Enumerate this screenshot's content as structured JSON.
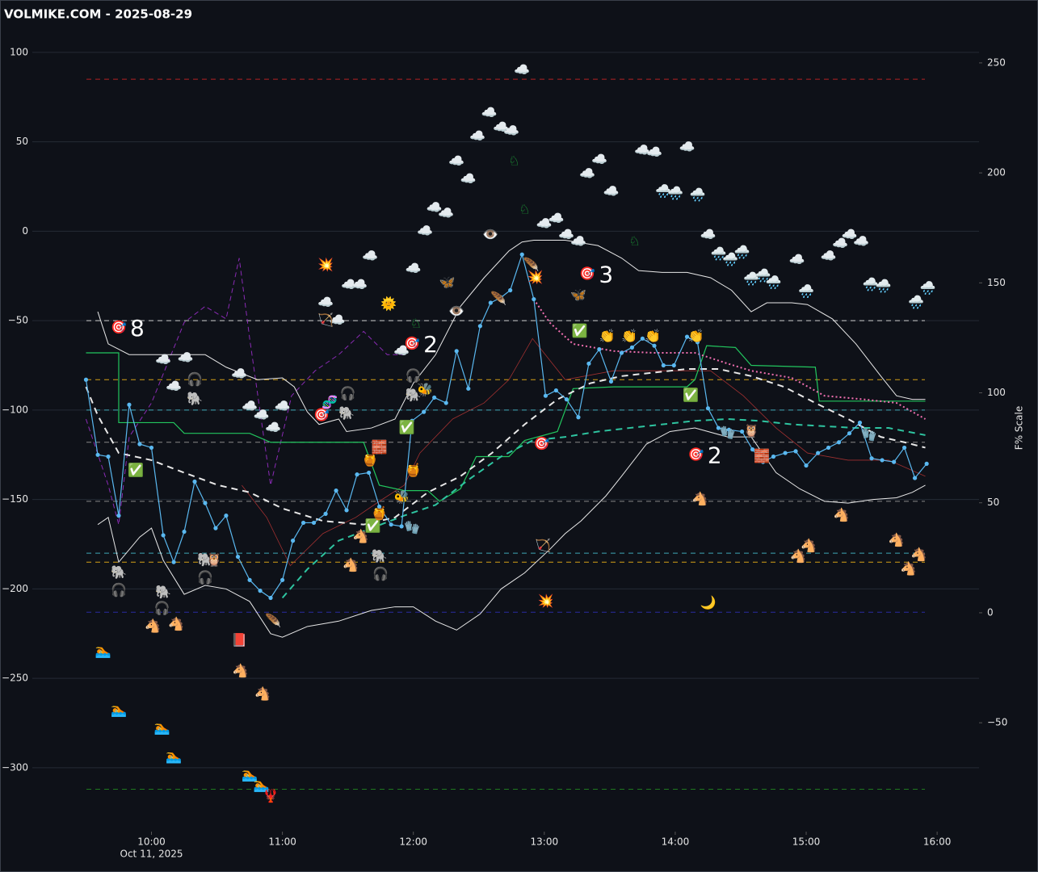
{
  "chart_data": {
    "type": "line",
    "title": "VOLMIKE.COM  - 2025-08-29",
    "y2label": "F% Scale",
    "date_label": "Oct 11, 2025",
    "xlim": [
      9.09,
      16.32
    ],
    "ylim": [
      -335.7,
      129.3
    ],
    "y2lim": [
      -99.5,
      278.6
    ],
    "grid": true,
    "xticks": [
      {
        "value": 10,
        "label": "10:00"
      },
      {
        "value": 11,
        "label": "11:00"
      },
      {
        "value": 12,
        "label": "12:00"
      },
      {
        "value": 13,
        "label": "13:00"
      },
      {
        "value": 14,
        "label": "14:00"
      },
      {
        "value": 15,
        "label": "15:00"
      },
      {
        "value": 16,
        "label": "16:00"
      }
    ],
    "yticks": [
      100,
      50,
      0,
      {
        "value": -50,
        "label": "−50"
      },
      {
        "value": -100,
        "label": "−100"
      },
      {
        "value": -150,
        "label": "−150"
      },
      {
        "value": -200,
        "label": "−200"
      },
      {
        "value": -250,
        "label": "−250"
      },
      {
        "value": -300,
        "label": "−300"
      }
    ],
    "y2ticks": [
      250,
      200,
      150,
      100,
      50,
      0,
      {
        "value": -50,
        "label": "−50"
      }
    ],
    "hlines": [
      {
        "value": 85,
        "color": "#b22222"
      },
      {
        "value": -50,
        "color": "#cccccc"
      },
      {
        "value": -83,
        "color": "#d4a017"
      },
      {
        "value": -100,
        "color": "#3fa7b5"
      },
      {
        "value": -118,
        "color": "#888888"
      },
      {
        "value": -151,
        "color": "#888888"
      },
      {
        "value": -180,
        "color": "#3fa7b5"
      },
      {
        "value": -185,
        "color": "#d4a017"
      },
      {
        "value": -213,
        "color": "#2a2aa0"
      },
      {
        "value": -312,
        "color": "#1f7a1f"
      }
    ],
    "series": [
      {
        "color": "#a03030",
        "width": 0.8,
        "dash": "none",
        "x": [
          10.69,
          10.88,
          11.06,
          11.31,
          11.56,
          11.74,
          11.93,
          12.05,
          12.3,
          12.54,
          12.73,
          12.91,
          13.16,
          13.53,
          14.27,
          14.52,
          14.77,
          15.01,
          15.32,
          15.63,
          15.91
        ],
        "values": [
          -142,
          -160,
          -187,
          -169,
          -160,
          -151,
          -142,
          -124,
          -105,
          -96,
          -83,
          -60,
          -83,
          -78,
          -78,
          -92,
          -110,
          -124,
          -128,
          -128,
          -137
        ]
      },
      {
        "color": "#8a2bb5",
        "width": 1,
        "dash": "6,4",
        "x": [
          9.5,
          9.67,
          9.75,
          9.83,
          10,
          10.25,
          10.41,
          10.57,
          10.67,
          10.75,
          10.91,
          11.07,
          11.25,
          11.43,
          11.62,
          11.8,
          11.93
        ],
        "values": [
          -105,
          -142,
          -164,
          -115,
          -96,
          -51,
          -42,
          -49,
          -15,
          -60,
          -142,
          -92,
          -78,
          -69,
          -56,
          -69,
          -69
        ]
      },
      {
        "color": "#e8e8e8",
        "width": 1,
        "dash": "none",
        "x": [
          9.59,
          9.67,
          9.83,
          10.07,
          10.26,
          10.41,
          10.57,
          10.81,
          11.0,
          11.09,
          11.19,
          11.28,
          11.43,
          11.49,
          11.68,
          11.86,
          12.0,
          12.17,
          12.36,
          12.54,
          12.73,
          12.83,
          12.92,
          13.16,
          13.41,
          13.59,
          13.72,
          13.9,
          14.09,
          14.27,
          14.43,
          14.58,
          14.7,
          14.89,
          15.01,
          15.2,
          15.38,
          15.57,
          15.69,
          15.81,
          15.91
        ],
        "values": [
          -45,
          -63,
          -69,
          -69,
          -69,
          -69,
          -76,
          -83,
          -82,
          -87,
          -101,
          -108,
          -105,
          -112,
          -110,
          -105,
          -85,
          -69,
          -42,
          -26,
          -11,
          -6,
          -5,
          -5,
          -8,
          -15,
          -22,
          -23,
          -23,
          -26,
          -33,
          -45,
          -40,
          -40,
          -41,
          -49,
          -63,
          -81,
          -92,
          -94,
          -94
        ]
      },
      {
        "color": "#e8e8e8",
        "width": 1,
        "dash": "none",
        "x": [
          9.59,
          9.67,
          9.75,
          9.91,
          10,
          10.09,
          10.25,
          10.41,
          10.57,
          10.75,
          10.91,
          11.0,
          11.19,
          11.43,
          11.68,
          11.86,
          12.0,
          12.17,
          12.33,
          12.51,
          12.67,
          12.85,
          13.04,
          13.16,
          13.28,
          13.47,
          13.59,
          13.78,
          13.96,
          14.15,
          14.4,
          14.58,
          14.77,
          14.95,
          15.14,
          15.32,
          15.51,
          15.69,
          15.81,
          15.91
        ],
        "values": [
          -164,
          -160,
          -185,
          -171,
          -166,
          -184,
          -203,
          -198,
          -200,
          -207,
          -225,
          -227,
          -221,
          -218,
          -212,
          -210,
          -210,
          -218,
          -223,
          -214,
          -200,
          -191,
          -178,
          -169,
          -162,
          -148,
          -137,
          -119,
          -112,
          -110,
          -115,
          -115,
          -135,
          -144,
          -151,
          -152,
          -150,
          -149,
          -146,
          -142
        ]
      },
      {
        "color": "#22c55e",
        "width": 1.2,
        "dash": "none",
        "x": [
          9.5,
          9.75,
          9.75,
          10.17,
          10.25,
          10.75,
          10.91,
          11.62,
          11.74,
          11.93,
          12.11,
          12.2,
          12.36,
          12.48,
          12.73,
          12.85,
          13.1,
          13.22,
          13.53,
          14.09,
          14.15,
          14.24,
          14.46,
          14.58,
          15.07,
          15.1,
          15.91
        ],
        "values": [
          -68,
          -68,
          -107,
          -107,
          -113,
          -113,
          -118,
          -118,
          -142,
          -145,
          -145,
          -151,
          -144,
          -126,
          -126,
          -117,
          -112,
          -88,
          -87,
          -87,
          -83,
          -64,
          -65,
          -75,
          -76,
          -95,
          -95
        ]
      },
      {
        "color": "#e8e8e8",
        "width": 2,
        "dash": "8,6",
        "x": [
          9.5,
          9.59,
          9.75,
          10,
          10.25,
          10.51,
          10.75,
          11,
          11.31,
          11.62,
          11.86,
          12.11,
          12.36,
          12.6,
          12.85,
          13.1,
          13.35,
          13.59,
          13.84,
          14.09,
          14.33,
          14.58,
          14.83,
          15.07,
          15.32,
          15.57,
          15.75,
          15.91
        ],
        "values": [
          -87,
          -103,
          -124,
          -128,
          -135,
          -142,
          -146,
          -155,
          -162,
          -164,
          -160,
          -146,
          -137,
          -124,
          -108,
          -94,
          -85,
          -81,
          -79,
          -77,
          -77,
          -81,
          -87,
          -96,
          -105,
          -115,
          -118,
          -121
        ]
      },
      {
        "color": "#2ec4a0",
        "width": 2,
        "dash": "8,6",
        "x": [
          11,
          11.19,
          11.43,
          11.68,
          11.93,
          12.17,
          12.42,
          12.67,
          12.91,
          13.16,
          13.41,
          13.65,
          13.9,
          14.15,
          14.4,
          14.64,
          14.89,
          15.14,
          15.38,
          15.63,
          15.91
        ],
        "values": [
          -205,
          -189,
          -173,
          -166,
          -159,
          -153,
          -139,
          -126,
          -117,
          -115,
          -112,
          -110,
          -108,
          -106,
          -105,
          -106,
          -108,
          -109,
          -110,
          -110,
          -114
        ]
      },
      {
        "color": "#f06fb0",
        "width": 2,
        "dash": "2,3",
        "x": [
          12.92,
          13.04,
          13.22,
          13.53,
          13.84,
          14.15,
          14.4,
          14.58,
          14.89,
          15.14,
          15.44,
          15.69,
          15.91
        ],
        "values": [
          -38,
          -51,
          -63,
          -67,
          -68,
          -68,
          -74,
          -78,
          -82,
          -92,
          -94,
          -96,
          -105
        ]
      },
      {
        "color": "#5ab8f0",
        "width": 1.2,
        "dash": "none",
        "points": true,
        "x": [
          9.5,
          9.59,
          9.67,
          9.75,
          9.83,
          9.91,
          10.0,
          10.09,
          10.17,
          10.25,
          10.33,
          10.41,
          10.49,
          10.57,
          10.66,
          10.75,
          10.83,
          10.91,
          11.0,
          11.08,
          11.16,
          11.24,
          11.33,
          11.41,
          11.49,
          11.57,
          11.66,
          11.74,
          11.83,
          11.91,
          11.99,
          12.08,
          12.16,
          12.25,
          12.33,
          12.42,
          12.51,
          12.59,
          12.67,
          12.74,
          12.83,
          12.92,
          13.01,
          13.09,
          13.17,
          13.26,
          13.34,
          13.42,
          13.51,
          13.59,
          13.67,
          13.75,
          13.84,
          13.91,
          13.99,
          14.09,
          14.17,
          14.25,
          14.33,
          14.41,
          14.51,
          14.59,
          14.67,
          14.75,
          14.84,
          14.92,
          15.0,
          15.09,
          15.17,
          15.25,
          15.33,
          15.41,
          15.5,
          15.58,
          15.67,
          15.75,
          15.83,
          15.92
        ],
        "values": [
          -83,
          -125,
          -126,
          -159,
          -97,
          -119,
          -121,
          -170,
          -185,
          -168,
          -140,
          -152,
          -166,
          -159,
          -182,
          -195,
          -201,
          -205,
          -195,
          -173,
          -163,
          -163,
          -158,
          -145,
          -156,
          -136,
          -135,
          -154,
          -164,
          -165,
          -106,
          -101,
          -93,
          -96,
          -67,
          -88,
          -53,
          -40,
          -37,
          -33,
          -13,
          -38,
          -92,
          -89,
          -94,
          -104,
          -74,
          -66,
          -84,
          -68,
          -65,
          -60,
          -64,
          -75,
          -75,
          -59,
          -62,
          -99,
          -110,
          -111,
          -112,
          -122,
          -129,
          -126,
          -124,
          -123,
          -131,
          -124,
          -121,
          -118,
          -113,
          -107,
          -127,
          -128,
          -129,
          -121,
          -138,
          -130
        ]
      }
    ],
    "markers": [
      {
        "symbol": "☁️",
        "x": [
          12.83,
          12.58,
          12.67,
          12.75,
          12.49,
          12.33,
          12.42,
          13.42,
          13.33,
          13.51,
          13.75,
          13.84,
          14.09,
          12.16,
          12.25,
          12.09,
          13.0,
          13.09,
          13.17,
          13.26,
          14.25,
          14.93,
          15.17,
          15.26,
          15.33,
          15.42,
          11.67,
          12.0,
          11.51,
          11.59,
          11.33,
          11.42,
          11.91,
          10.09,
          10.26,
          10.17,
          10.67,
          10.75,
          10.84,
          10.93,
          11.0
        ],
        "y": [
          90,
          66,
          58,
          56,
          53,
          39,
          29,
          40,
          32,
          22,
          45,
          44,
          47,
          13,
          10,
          0,
          4,
          7,
          -2,
          -6,
          -2,
          -16,
          -14,
          -7,
          -2,
          -6,
          -14,
          -21,
          -30,
          -30,
          -40,
          -50,
          -67,
          -72,
          -71,
          -87,
          -80,
          -98,
          -103,
          -110,
          -98
        ]
      },
      {
        "symbol": "🌧️",
        "x": [
          13.91,
          14.0,
          14.17,
          14.33,
          14.42,
          14.51,
          14.67,
          14.58,
          14.75,
          15.0,
          15.49,
          15.59,
          15.93,
          15.84
        ],
        "y": [
          22,
          21,
          20,
          -13,
          -16,
          -12,
          -25,
          -27,
          -29,
          -34,
          -30,
          -31,
          -32,
          -40
        ]
      },
      {
        "symbol": "🐴",
        "color": "#ff2020",
        "x": [
          10.01,
          10.19,
          10.68,
          10.85,
          11.6,
          11.52,
          14.19,
          15.27,
          14.94,
          15.02,
          15.69,
          15.78,
          15.86
        ],
        "y": [
          -221,
          -220,
          -246,
          -259,
          -171,
          -187,
          -150,
          -159,
          -182,
          -176,
          -173,
          -189,
          -181
        ]
      },
      {
        "symbol": "♘",
        "color": "#1faa3a",
        "x": [
          12.77,
          12.85,
          13.69,
          12.02
        ],
        "y": [
          39,
          12,
          -6,
          -52
        ]
      },
      {
        "symbol": "🎯",
        "x": [
          11.3,
          12.98
        ],
        "y": [
          -103,
          -119
        ]
      },
      {
        "symbol": "🎯",
        "x": [
          9.75,
          11.99,
          13.33,
          14.16
        ],
        "y": [
          -54,
          -63,
          -24,
          -125
        ],
        "labels": [
          "8",
          "2",
          "3",
          "2"
        ]
      },
      {
        "symbol": "🌞",
        "x": [
          11.81
        ],
        "y": [
          -41
        ]
      },
      {
        "symbol": "🌙",
        "x": [
          14.25
        ],
        "y": [
          -208
        ]
      },
      {
        "symbol": "👁️",
        "x": [
          12.59,
          12.33
        ],
        "y": [
          -2,
          -45
        ]
      },
      {
        "symbol": "🐘",
        "x": [
          9.75,
          10.09,
          10.33,
          10.41,
          11.74,
          12.0,
          11.49
        ],
        "y": [
          -191,
          -202,
          -94,
          -184,
          -182,
          -92,
          -102
        ]
      },
      {
        "symbol": "🎧",
        "x": [
          9.75,
          10.08,
          10.33,
          10.41,
          11.75,
          12.0,
          11.5
        ],
        "y": [
          -201,
          -211,
          -83,
          -194,
          -192,
          -81,
          -91
        ]
      },
      {
        "symbol": "🏊",
        "x": [
          9.63,
          9.75,
          10.08,
          10.17,
          10.75,
          10.84
        ],
        "y": [
          -235,
          -268,
          -278,
          -294,
          -304,
          -310
        ]
      },
      {
        "symbol": "🦞",
        "x": [
          10.91
        ],
        "y": [
          -316
        ]
      },
      {
        "symbol": "✅",
        "x": [
          9.88,
          11.95,
          11.69,
          13.27,
          14.12
        ],
        "y": [
          -134,
          -110,
          -165,
          -56,
          -92
        ]
      },
      {
        "symbol": "🍯",
        "x": [
          11.67,
          12.0,
          11.74
        ],
        "y": [
          -128,
          -134,
          -158
        ]
      },
      {
        "symbol": "🏹",
        "x": [
          11.33,
          12.99
        ],
        "y": [
          -50,
          -176
        ]
      },
      {
        "symbol": "💥",
        "x": [
          11.33,
          12.93,
          13.01
        ],
        "y": [
          -19,
          -26,
          -207
        ]
      },
      {
        "symbol": "🦋",
        "x": [
          12.26,
          13.26
        ],
        "y": [
          -29,
          -36
        ]
      },
      {
        "symbol": "👏",
        "x": [
          13.48,
          13.65,
          13.83,
          14.16
        ],
        "y": [
          -59,
          -59,
          -59,
          -59
        ]
      },
      {
        "symbol": "🧤",
        "x": [
          14.4,
          15.48,
          11.99
        ],
        "y": [
          -113,
          -114,
          -166
        ]
      },
      {
        "symbol": "🧱",
        "x": [
          11.74,
          14.66
        ],
        "y": [
          -121,
          -126
        ]
      },
      {
        "symbol": "📕",
        "x": [
          10.67
        ],
        "y": [
          -229
        ]
      },
      {
        "symbol": "🦉",
        "x": [
          10.48,
          14.58
        ],
        "y": [
          -184,
          -112
        ]
      },
      {
        "symbol": "🧬",
        "x": [
          11.36
        ],
        "y": [
          -96
        ]
      },
      {
        "symbol": "🪶",
        "x": [
          12.9,
          12.65,
          10.93
        ],
        "y": [
          -19,
          -38,
          -218
        ]
      },
      {
        "symbol": "🐝",
        "x": [
          11.91,
          12.09
        ],
        "y": [
          -149,
          -89
        ]
      }
    ]
  }
}
